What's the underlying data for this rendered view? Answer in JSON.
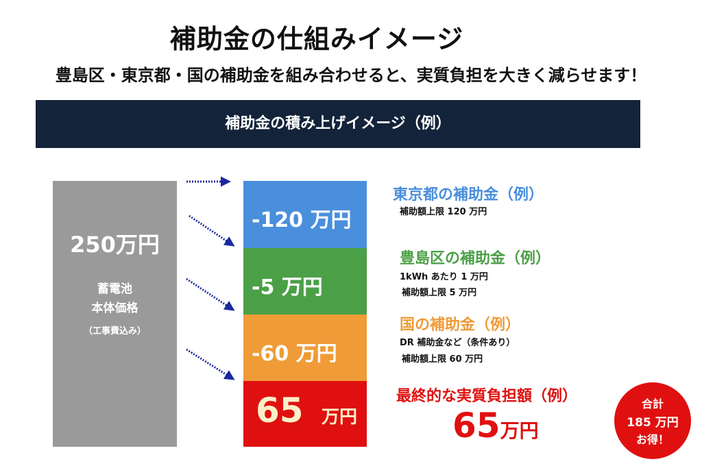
{
  "title": "補助金の仕組みイメージ",
  "subtitle": "豊島区・東京都・国の補助金を組み合わせると、実質負担を大きく減らせます！",
  "banner": "補助金の積み上げイメージ（例）",
  "price_block": {
    "total": "250万円",
    "label_line1": "蓄電池",
    "label_line2": "本体価格",
    "note": "（工事費込み）",
    "color": "#9a9a9a"
  },
  "segments": {
    "tokyo": {
      "text": "-120 万円",
      "color": "#4a8fdc"
    },
    "toshima": {
      "text": "-5 万円",
      "color": "#4ba047"
    },
    "kuni": {
      "text": "-60 万円",
      "color": "#ef9b37"
    },
    "final": {
      "value": "65",
      "unit": "万円",
      "color": "#e01010"
    }
  },
  "labels": {
    "tokyo": {
      "heading": "東京都の補助金（例）",
      "line1": "補助額上限 120 万円"
    },
    "toshima": {
      "heading": "豊島区の補助金（例）",
      "line1": "1kWh あたり 1 万円",
      "line2": "補助額上限 5 万円"
    },
    "kuni": {
      "heading": "国の補助金（例）",
      "line1": "DR 補助金など（条件あり）",
      "line2": "補助額上限 60 万円"
    },
    "final": {
      "heading": "最終的な実質負担額（例）",
      "value": "65",
      "unit": "万円"
    }
  },
  "badge": {
    "line1": "合計",
    "line2": "185 万円",
    "line3": "お得！"
  },
  "colors": {
    "banner": "#13243a",
    "arrow": "#1a2a9e",
    "accent_red": "#e01010"
  }
}
